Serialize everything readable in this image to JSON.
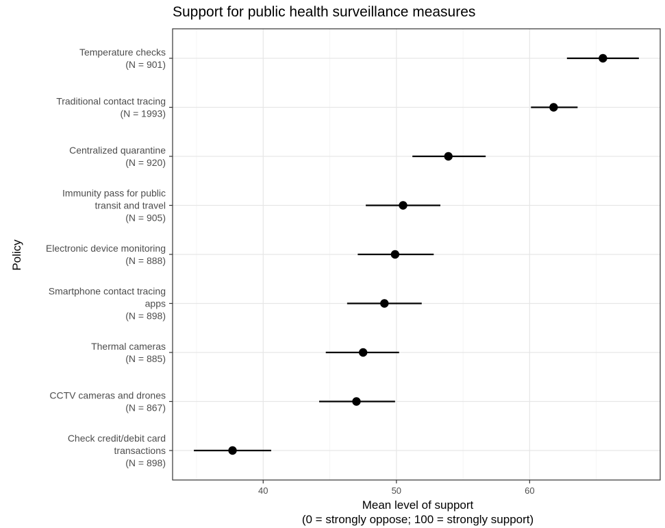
{
  "chart_data": {
    "type": "scatter",
    "title": "Support for public health surveillance measures",
    "xlabel_lines": [
      "Mean level of support",
      "(0 = strongly oppose; 100 = strongly support)"
    ],
    "ylabel": "Policy",
    "xlim": [
      33.2,
      69.8
    ],
    "xticks": [
      40,
      50,
      60
    ],
    "grid": true,
    "legend": "none",
    "marker_color": "#000000",
    "categories": [
      {
        "label_lines": [
          "Temperature checks",
          "(N = 901)"
        ],
        "mean": 65.5,
        "low": 62.8,
        "high": 68.2
      },
      {
        "label_lines": [
          "Traditional contact tracing",
          "(N = 1993)"
        ],
        "mean": 61.8,
        "low": 60.1,
        "high": 63.6
      },
      {
        "label_lines": [
          "Centralized quarantine",
          "(N = 920)"
        ],
        "mean": 53.9,
        "low": 51.2,
        "high": 56.7
      },
      {
        "label_lines": [
          "Immunity pass for public",
          "transit and travel",
          "(N = 905)"
        ],
        "mean": 50.5,
        "low": 47.7,
        "high": 53.3
      },
      {
        "label_lines": [
          "Electronic device monitoring",
          "(N = 888)"
        ],
        "mean": 49.9,
        "low": 47.1,
        "high": 52.8
      },
      {
        "label_lines": [
          "Smartphone contact tracing",
          "apps",
          "(N = 898)"
        ],
        "mean": 49.1,
        "low": 46.3,
        "high": 51.9
      },
      {
        "label_lines": [
          "Thermal cameras",
          "(N = 885)"
        ],
        "mean": 47.5,
        "low": 44.7,
        "high": 50.2
      },
      {
        "label_lines": [
          "CCTV cameras and drones",
          "(N = 867)"
        ],
        "mean": 47.0,
        "low": 44.2,
        "high": 49.9
      },
      {
        "label_lines": [
          "Check credit/debit card",
          "transactions",
          "(N = 898)"
        ],
        "mean": 37.7,
        "low": 34.8,
        "high": 40.6
      }
    ]
  }
}
